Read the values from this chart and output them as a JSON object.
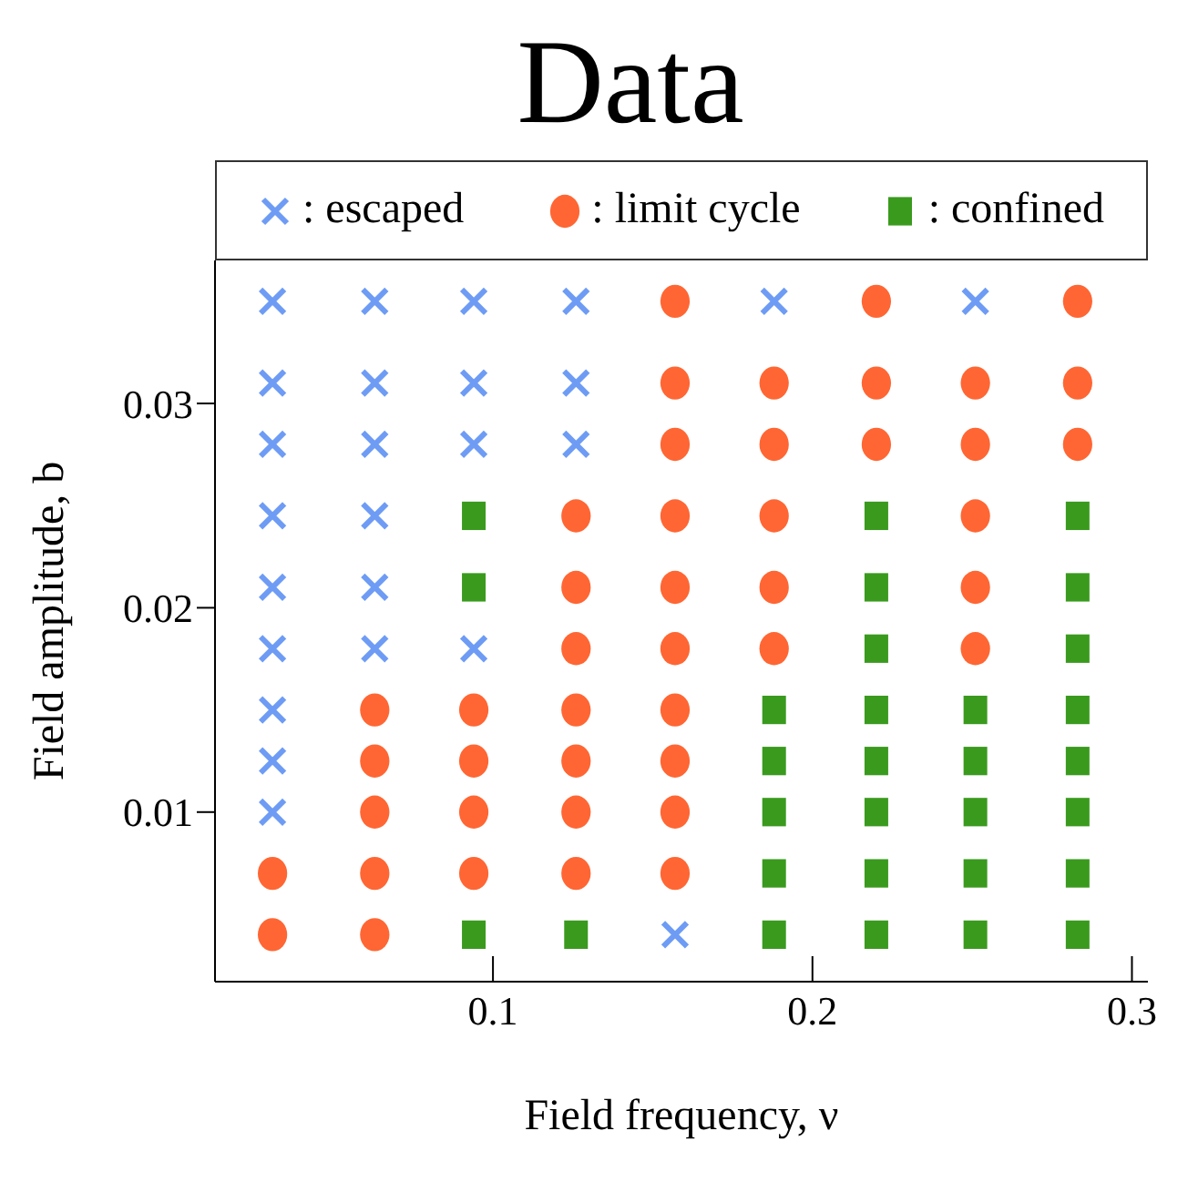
{
  "chart_data": {
    "type": "scatter",
    "title": "Data",
    "xlabel": "Field frequency, ν",
    "ylabel": "Field amplitude, b",
    "xlim": [
      0.013,
      0.305
    ],
    "xticks": [
      0.1,
      0.2,
      0.3
    ],
    "ylim": [
      0.0017,
      0.037
    ],
    "yticks": [
      0.01,
      0.02,
      0.03
    ],
    "grid": false,
    "legend": "top",
    "series": [
      {
        "name": ": escaped",
        "color": "#6e9cf5",
        "marker": "cross",
        "x": [
          0.031,
          0.063,
          0.094,
          0.126,
          0.188,
          0.251,
          0.031,
          0.063,
          0.094,
          0.126,
          0.031,
          0.063,
          0.094,
          0.126,
          0.031,
          0.063,
          0.031,
          0.063,
          0.031,
          0.063,
          0.094,
          0.031,
          0.031,
          0.031,
          0.157
        ],
        "values": [
          0.035,
          0.035,
          0.035,
          0.035,
          0.035,
          0.035,
          0.031,
          0.031,
          0.031,
          0.031,
          0.028,
          0.028,
          0.028,
          0.028,
          0.0245,
          0.0245,
          0.021,
          0.021,
          0.018,
          0.018,
          0.018,
          0.015,
          0.0125,
          0.01,
          0.004
        ]
      },
      {
        "name": ": limit cycle",
        "color": "#ff6633",
        "marker": "circle",
        "x": [
          0.157,
          0.22,
          0.283,
          0.157,
          0.188,
          0.22,
          0.251,
          0.283,
          0.157,
          0.188,
          0.22,
          0.251,
          0.283,
          0.126,
          0.157,
          0.188,
          0.251,
          0.126,
          0.157,
          0.188,
          0.251,
          0.126,
          0.157,
          0.188,
          0.251,
          0.063,
          0.094,
          0.126,
          0.157,
          0.063,
          0.094,
          0.126,
          0.157,
          0.063,
          0.094,
          0.126,
          0.157,
          0.031,
          0.063,
          0.094,
          0.126,
          0.157,
          0.031,
          0.063
        ],
        "values": [
          0.035,
          0.035,
          0.035,
          0.031,
          0.031,
          0.031,
          0.031,
          0.031,
          0.028,
          0.028,
          0.028,
          0.028,
          0.028,
          0.0245,
          0.0245,
          0.0245,
          0.0245,
          0.021,
          0.021,
          0.021,
          0.021,
          0.018,
          0.018,
          0.018,
          0.018,
          0.015,
          0.015,
          0.015,
          0.015,
          0.0125,
          0.0125,
          0.0125,
          0.0125,
          0.01,
          0.01,
          0.01,
          0.01,
          0.007,
          0.007,
          0.007,
          0.007,
          0.007,
          0.004,
          0.004
        ]
      },
      {
        "name": ": confined",
        "color": "#3a9a1e",
        "marker": "square",
        "x": [
          0.094,
          0.22,
          0.283,
          0.094,
          0.22,
          0.283,
          0.22,
          0.283,
          0.188,
          0.22,
          0.251,
          0.283,
          0.188,
          0.22,
          0.251,
          0.283,
          0.188,
          0.22,
          0.251,
          0.283,
          0.188,
          0.22,
          0.251,
          0.283,
          0.094,
          0.126,
          0.188,
          0.22,
          0.251,
          0.283
        ],
        "values": [
          0.0245,
          0.0245,
          0.0245,
          0.021,
          0.021,
          0.021,
          0.018,
          0.018,
          0.015,
          0.015,
          0.015,
          0.015,
          0.0125,
          0.0125,
          0.0125,
          0.0125,
          0.01,
          0.01,
          0.01,
          0.01,
          0.007,
          0.007,
          0.007,
          0.007,
          0.004,
          0.004,
          0.004,
          0.004,
          0.004,
          0.004
        ]
      }
    ]
  }
}
